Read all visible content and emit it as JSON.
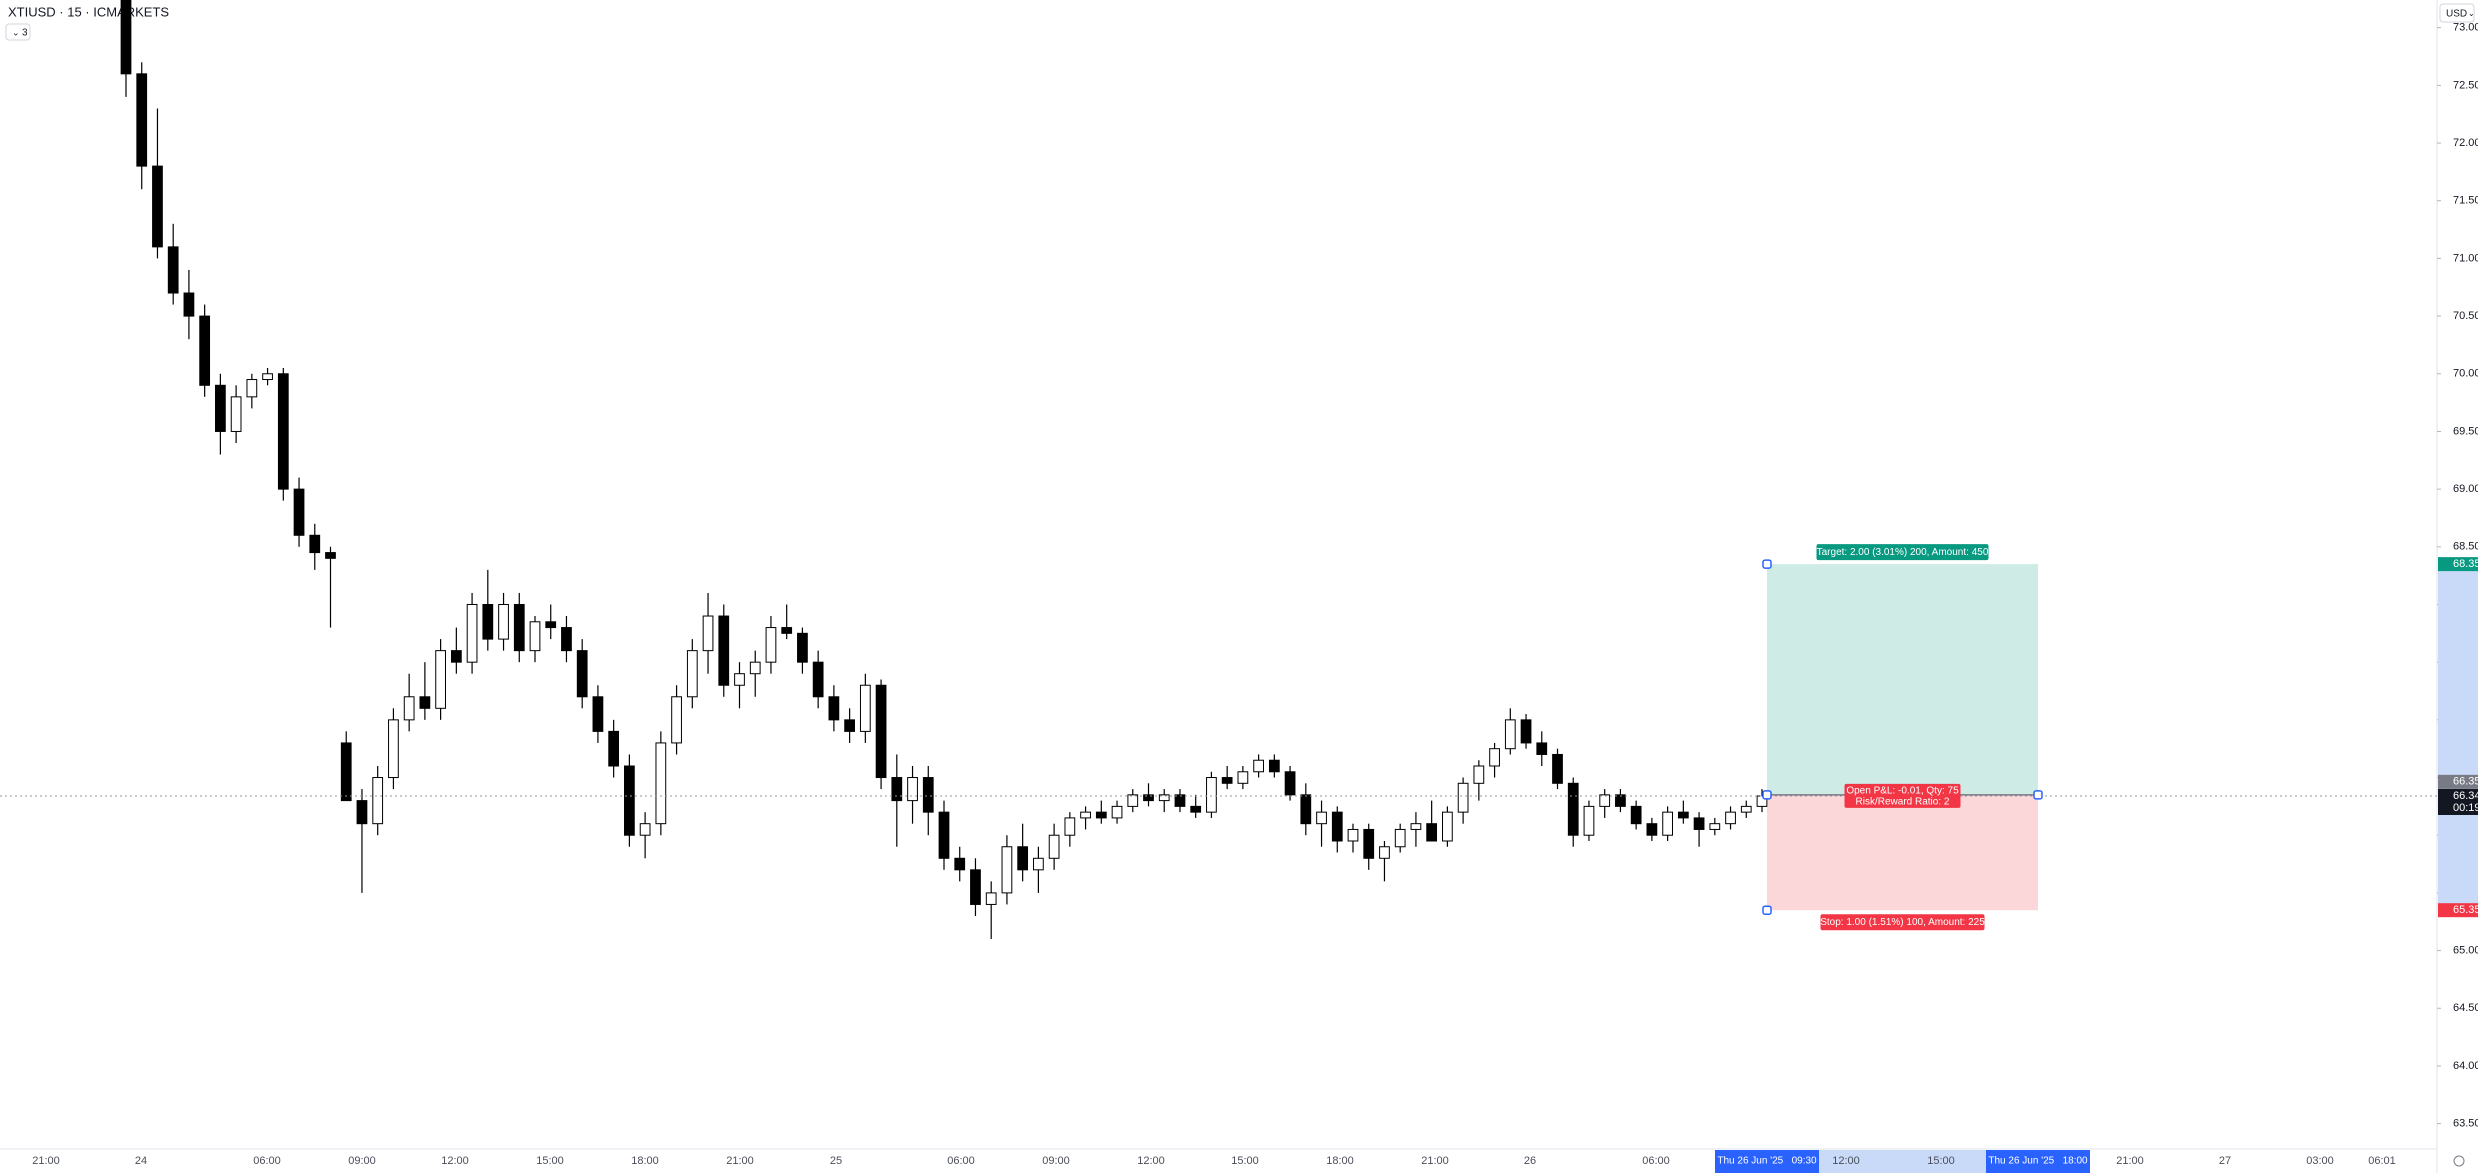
{
  "chart_data": {
    "type": "candlestick",
    "title": "XTIUSD · 15 · ICMARKETS",
    "indicator_count": "3",
    "currency": "USD",
    "up_color": "#ffffff",
    "down_color": "#000000",
    "candles": [
      [
        73.3,
        73.4,
        72.4,
        72.6
      ],
      [
        72.6,
        72.7,
        71.6,
        71.8
      ],
      [
        71.8,
        72.3,
        71.0,
        71.1
      ],
      [
        71.1,
        71.3,
        70.6,
        70.7
      ],
      [
        70.7,
        70.9,
        70.3,
        70.5
      ],
      [
        70.5,
        70.6,
        69.8,
        69.9
      ],
      [
        69.9,
        70.0,
        69.3,
        69.5
      ],
      [
        69.5,
        69.9,
        69.4,
        69.8
      ],
      [
        69.8,
        70.0,
        69.7,
        69.95
      ],
      [
        69.95,
        70.05,
        69.9,
        70.0
      ],
      [
        70.0,
        70.05,
        68.9,
        69.0
      ],
      [
        69.0,
        69.1,
        68.5,
        68.6
      ],
      [
        68.6,
        68.7,
        68.3,
        68.45
      ],
      [
        68.45,
        68.5,
        67.8,
        68.4
      ],
      [
        66.8,
        66.9,
        66.3,
        66.3
      ],
      [
        66.3,
        66.4,
        65.5,
        66.1
      ],
      [
        66.1,
        66.6,
        66.0,
        66.5
      ],
      [
        66.5,
        67.1,
        66.4,
        67.0
      ],
      [
        67.0,
        67.4,
        66.9,
        67.2
      ],
      [
        67.2,
        67.5,
        67.0,
        67.1
      ],
      [
        67.1,
        67.7,
        67.0,
        67.6
      ],
      [
        67.6,
        67.8,
        67.4,
        67.5
      ],
      [
        67.5,
        68.1,
        67.4,
        68.0
      ],
      [
        68.0,
        68.3,
        67.6,
        67.7
      ],
      [
        67.7,
        68.1,
        67.6,
        68.0
      ],
      [
        68.0,
        68.1,
        67.5,
        67.6
      ],
      [
        67.6,
        67.9,
        67.5,
        67.85
      ],
      [
        67.85,
        68.0,
        67.7,
        67.8
      ],
      [
        67.8,
        67.9,
        67.5,
        67.6
      ],
      [
        67.6,
        67.7,
        67.1,
        67.2
      ],
      [
        67.2,
        67.3,
        66.8,
        66.9
      ],
      [
        66.9,
        67.0,
        66.5,
        66.6
      ],
      [
        66.6,
        66.7,
        65.9,
        66.0
      ],
      [
        66.0,
        66.2,
        65.8,
        66.1
      ],
      [
        66.1,
        66.9,
        66.0,
        66.8
      ],
      [
        66.8,
        67.3,
        66.7,
        67.2
      ],
      [
        67.2,
        67.7,
        67.1,
        67.6
      ],
      [
        67.6,
        68.1,
        67.4,
        67.9
      ],
      [
        67.9,
        68.0,
        67.2,
        67.3
      ],
      [
        67.3,
        67.5,
        67.1,
        67.4
      ],
      [
        67.4,
        67.6,
        67.2,
        67.5
      ],
      [
        67.5,
        67.9,
        67.4,
        67.8
      ],
      [
        67.8,
        68.0,
        67.7,
        67.75
      ],
      [
        67.75,
        67.8,
        67.4,
        67.5
      ],
      [
        67.5,
        67.6,
        67.1,
        67.2
      ],
      [
        67.2,
        67.3,
        66.9,
        67.0
      ],
      [
        67.0,
        67.1,
        66.8,
        66.9
      ],
      [
        66.9,
        67.4,
        66.8,
        67.3
      ],
      [
        67.3,
        67.35,
        66.4,
        66.5
      ],
      [
        66.5,
        66.7,
        65.9,
        66.3
      ],
      [
        66.3,
        66.6,
        66.1,
        66.5
      ],
      [
        66.5,
        66.6,
        66.0,
        66.2
      ],
      [
        66.2,
        66.3,
        65.7,
        65.8
      ],
      [
        65.8,
        65.9,
        65.6,
        65.7
      ],
      [
        65.7,
        65.8,
        65.3,
        65.4
      ],
      [
        65.4,
        65.6,
        65.1,
        65.5
      ],
      [
        65.5,
        66.0,
        65.4,
        65.9
      ],
      [
        65.9,
        66.1,
        65.6,
        65.7
      ],
      [
        65.7,
        65.9,
        65.5,
        65.8
      ],
      [
        65.8,
        66.1,
        65.7,
        66.0
      ],
      [
        66.0,
        66.2,
        65.9,
        66.15
      ],
      [
        66.15,
        66.25,
        66.05,
        66.2
      ],
      [
        66.2,
        66.3,
        66.1,
        66.15
      ],
      [
        66.15,
        66.3,
        66.1,
        66.25
      ],
      [
        66.25,
        66.4,
        66.2,
        66.35
      ],
      [
        66.35,
        66.45,
        66.25,
        66.3
      ],
      [
        66.3,
        66.4,
        66.2,
        66.35
      ],
      [
        66.35,
        66.4,
        66.2,
        66.25
      ],
      [
        66.25,
        66.35,
        66.15,
        66.2
      ],
      [
        66.2,
        66.55,
        66.15,
        66.5
      ],
      [
        66.5,
        66.6,
        66.4,
        66.45
      ],
      [
        66.45,
        66.6,
        66.4,
        66.55
      ],
      [
        66.55,
        66.7,
        66.5,
        66.65
      ],
      [
        66.65,
        66.7,
        66.5,
        66.55
      ],
      [
        66.55,
        66.6,
        66.3,
        66.35
      ],
      [
        66.35,
        66.45,
        66.0,
        66.1
      ],
      [
        66.1,
        66.3,
        65.9,
        66.2
      ],
      [
        66.2,
        66.25,
        65.85,
        65.95
      ],
      [
        65.95,
        66.1,
        65.85,
        66.05
      ],
      [
        66.05,
        66.1,
        65.7,
        65.8
      ],
      [
        65.8,
        65.95,
        65.6,
        65.9
      ],
      [
        65.9,
        66.1,
        65.85,
        66.05
      ],
      [
        66.05,
        66.2,
        65.9,
        66.1
      ],
      [
        66.1,
        66.3,
        65.95,
        65.95
      ],
      [
        65.95,
        66.25,
        65.9,
        66.2
      ],
      [
        66.2,
        66.5,
        66.1,
        66.45
      ],
      [
        66.45,
        66.65,
        66.3,
        66.6
      ],
      [
        66.6,
        66.8,
        66.5,
        66.75
      ],
      [
        66.75,
        67.1,
        66.7,
        67.0
      ],
      [
        67.0,
        67.05,
        66.75,
        66.8
      ],
      [
        66.8,
        66.9,
        66.6,
        66.7
      ],
      [
        66.7,
        66.75,
        66.4,
        66.45
      ],
      [
        66.45,
        66.5,
        65.9,
        66.0
      ],
      [
        66.0,
        66.3,
        65.95,
        66.25
      ],
      [
        66.25,
        66.4,
        66.15,
        66.35
      ],
      [
        66.35,
        66.4,
        66.2,
        66.25
      ],
      [
        66.25,
        66.3,
        66.05,
        66.1
      ],
      [
        66.1,
        66.15,
        65.95,
        66.0
      ],
      [
        66.0,
        66.25,
        65.95,
        66.2
      ],
      [
        66.2,
        66.3,
        66.1,
        66.15
      ],
      [
        66.15,
        66.2,
        65.9,
        66.05
      ],
      [
        66.05,
        66.15,
        66.0,
        66.1
      ],
      [
        66.1,
        66.25,
        66.05,
        66.2
      ],
      [
        66.2,
        66.3,
        66.15,
        66.25
      ],
      [
        66.25,
        66.4,
        66.2,
        66.34
      ]
    ],
    "ylim": [
      63.28,
      73.24
    ],
    "yticks": [
      {
        "value": 63.5,
        "label": "63.50"
      },
      {
        "value": 64.0,
        "label": "64.00"
      },
      {
        "value": 64.5,
        "label": "64.50"
      },
      {
        "value": 65.0,
        "label": "65.00"
      },
      {
        "value": 65.5,
        "label": "65.50"
      },
      {
        "value": 66.0,
        "label": "66.00"
      },
      {
        "value": 66.5,
        "label": "66.50"
      },
      {
        "value": 67.0,
        "label": "67.00"
      },
      {
        "value": 67.5,
        "label": "67.50"
      },
      {
        "value": 68.0,
        "label": "68.00"
      },
      {
        "value": 68.5,
        "label": "68.50"
      },
      {
        "value": 69.0,
        "label": "69.00"
      },
      {
        "value": 69.5,
        "label": "69.50"
      },
      {
        "value": 70.0,
        "label": "70.00"
      },
      {
        "value": 70.5,
        "label": "70.50"
      },
      {
        "value": 71.0,
        "label": "71.00"
      },
      {
        "value": 71.5,
        "label": "71.50"
      },
      {
        "value": 72.0,
        "label": "72.00"
      },
      {
        "value": 72.5,
        "label": "72.50"
      },
      {
        "value": 73.0,
        "label": "73.00"
      }
    ],
    "x_labels": [
      "21:00",
      "24",
      "06:00",
      "09:00",
      "12:00",
      "15:00",
      "18:00",
      "21:00",
      "25",
      "06:00",
      "09:00",
      "12:00",
      "15:00",
      "18:00",
      "21:00",
      "26",
      "06:00",
      "12:00",
      "15:00",
      "21:00",
      "27",
      "03:00",
      "06:01"
    ],
    "highlighted_x_labels": [
      "Thu 26 Jun '25   09:30",
      "Thu 26 Jun '25   18:00"
    ],
    "last_price": 66.34,
    "countdown": "00:19",
    "position_tool": {
      "entry": 66.35,
      "target": 68.35,
      "stop": 65.35,
      "target_label": "Target: 2.00 (3.01%) 200, Amount: 450",
      "pnl_label": "Open P&L: -0.01, Qty: 75",
      "rr_label": "Risk/Reward Ratio: 2",
      "stop_label": "Stop: 1.00 (1.51%) 100, Amount: 225"
    }
  }
}
